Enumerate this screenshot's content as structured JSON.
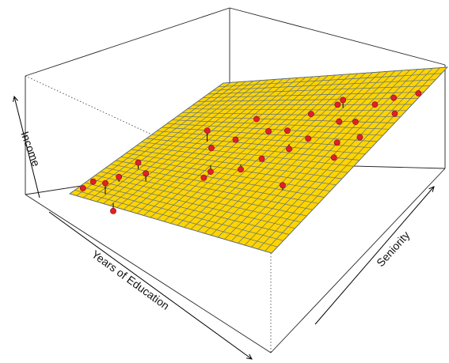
{
  "chart_data": {
    "type": "scatter",
    "subtype": "3d-scatter-with-regression-plane",
    "axes": {
      "x": "Years of Education",
      "y": "Seniority",
      "z": "Income"
    },
    "tick_labels_shown": false,
    "plane_color": "#FFD400",
    "plane_grid_color": "#5a6f8a",
    "point_color": "#E0202A",
    "residual_line_color": "#000000",
    "plane_grid_lines": 30,
    "points": [
      {
        "u": 0.02,
        "v": 0.06,
        "res": 0.0
      },
      {
        "u": 0.04,
        "v": 0.1,
        "res": 0.02
      },
      {
        "u": 0.13,
        "v": 0.06,
        "res": 0.07
      },
      {
        "u": 0.12,
        "v": 0.16,
        "res": 0.03
      },
      {
        "u": 0.13,
        "v": 0.27,
        "res": 0.04
      },
      {
        "u": 0.22,
        "v": 0.2,
        "res": 0.05
      },
      {
        "u": 0.27,
        "v": 0.52,
        "res": 0.07
      },
      {
        "u": 0.32,
        "v": 0.48,
        "res": 0.0
      },
      {
        "u": 0.4,
        "v": 0.37,
        "res": -0.04
      },
      {
        "u": 0.43,
        "v": 0.29,
        "res": 0.0
      },
      {
        "u": 0.2,
        "v": 0.02,
        "res": -0.05
      },
      {
        "u": 0.56,
        "v": 0.63,
        "res": 0.0
      },
      {
        "u": 0.58,
        "v": 0.45,
        "res": 0.0
      },
      {
        "u": 0.63,
        "v": 0.55,
        "res": -0.03
      },
      {
        "u": 0.7,
        "v": 0.78,
        "res": 0.05
      },
      {
        "u": 0.68,
        "v": 0.6,
        "res": -0.01
      },
      {
        "u": 0.76,
        "v": 0.68,
        "res": 0.02
      },
      {
        "u": 0.83,
        "v": 0.58,
        "res": 0.0
      },
      {
        "u": 0.82,
        "v": 0.7,
        "res": 0.0
      },
      {
        "u": 0.8,
        "v": 0.3,
        "res": 0.03
      },
      {
        "u": 0.88,
        "v": 0.5,
        "res": 0.0
      },
      {
        "u": 0.92,
        "v": 0.6,
        "res": 0.02
      },
      {
        "u": 0.83,
        "v": 0.8,
        "res": 0.0
      },
      {
        "u": 0.9,
        "v": 0.82,
        "res": 0.02
      },
      {
        "u": 0.96,
        "v": 0.75,
        "res": 0.0
      },
      {
        "u": 0.98,
        "v": 0.86,
        "res": 0.0
      },
      {
        "u": 0.6,
        "v": 0.72,
        "res": 0.02
      },
      {
        "u": 0.66,
        "v": 0.8,
        "res": 0.0
      },
      {
        "u": 0.48,
        "v": 0.62,
        "res": 0.0
      },
      {
        "u": 0.38,
        "v": 0.55,
        "res": 0.0
      },
      {
        "u": 0.52,
        "v": 0.4,
        "res": -0.03
      },
      {
        "u": 0.35,
        "v": 0.72,
        "res": -0.02
      }
    ]
  }
}
